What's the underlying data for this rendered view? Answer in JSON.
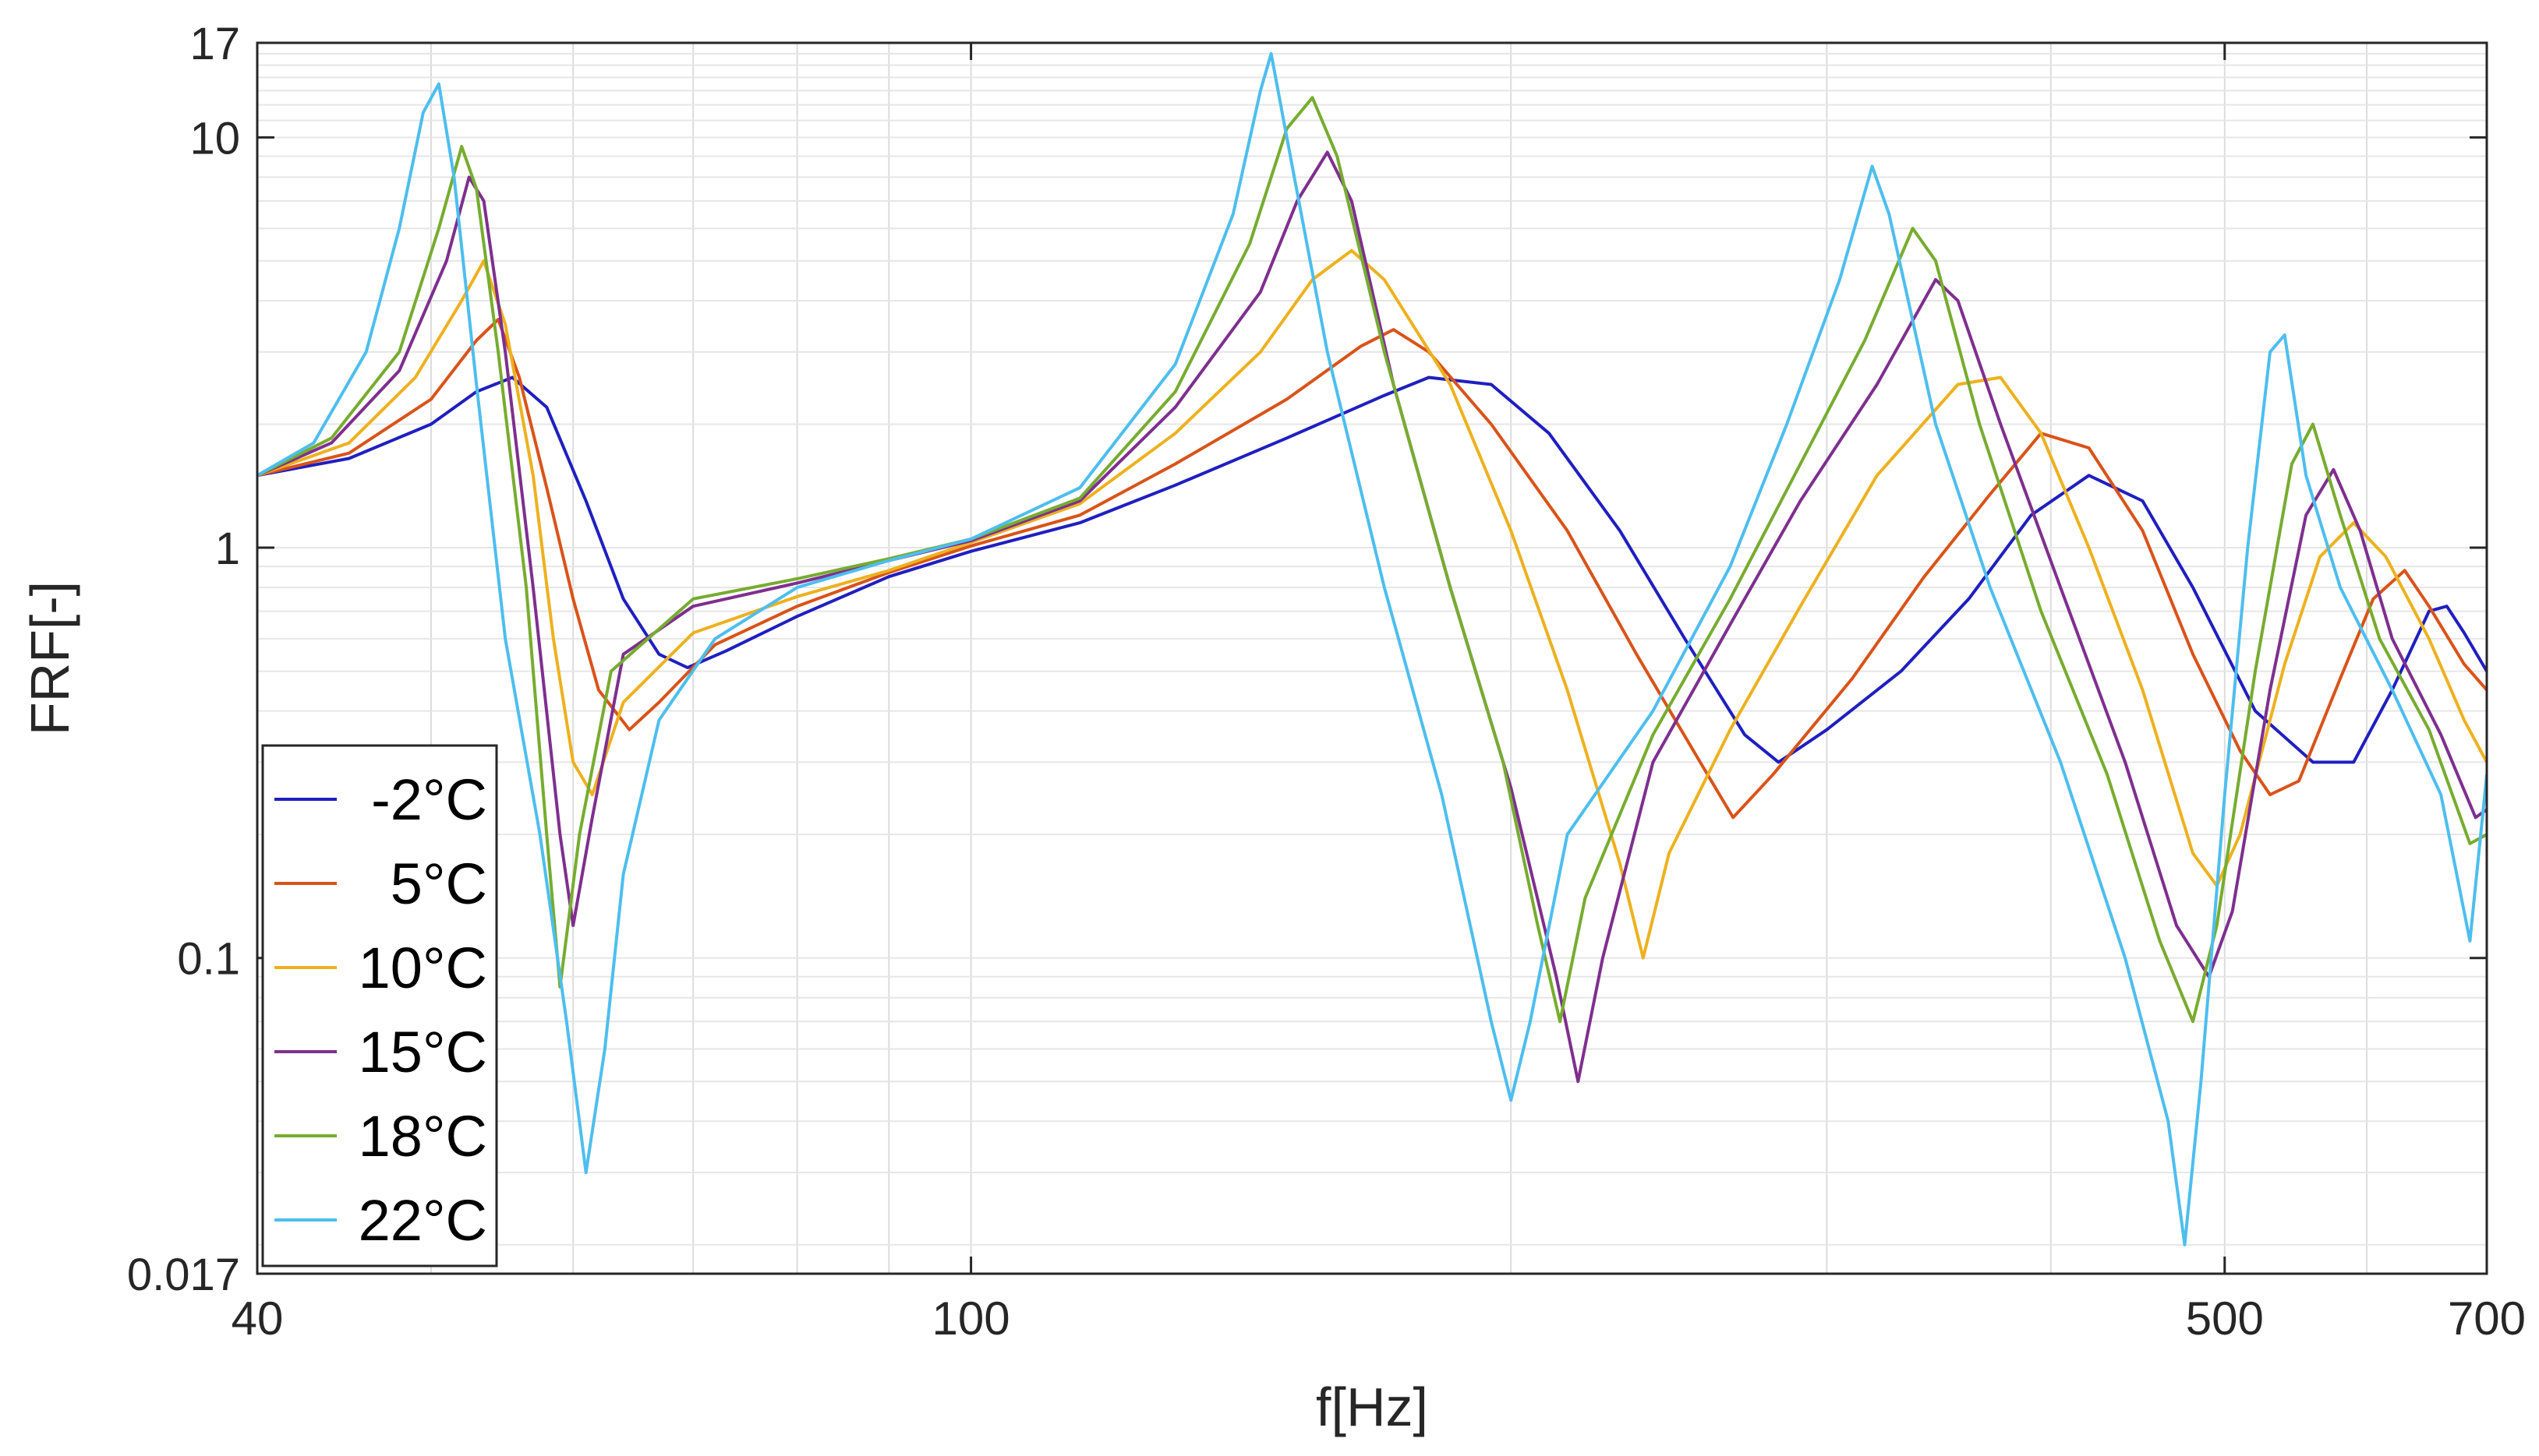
{
  "chart_data": {
    "type": "line",
    "title": "",
    "xlabel": "f[Hz]",
    "ylabel": "FRF[-]",
    "x_scale": "log",
    "y_scale": "log",
    "xlim": [
      40,
      700
    ],
    "ylim": [
      0.017,
      17
    ],
    "x_ticks": [
      {
        "value": 40,
        "label": "40"
      },
      {
        "value": 100,
        "label": "100"
      },
      {
        "value": 500,
        "label": "500"
      },
      {
        "value": 700,
        "label": "700"
      }
    ],
    "y_ticks": [
      {
        "value": 0.017,
        "label": "0.017"
      },
      {
        "value": 0.1,
        "label": "0.1"
      },
      {
        "value": 1,
        "label": "1"
      },
      {
        "value": 10,
        "label": "10"
      },
      {
        "value": 17,
        "label": "17"
      }
    ],
    "grid": true,
    "legend_position": "bottom-left",
    "series": [
      {
        "name": "-2°C",
        "color": "#1f1fbf",
        "points": [
          [
            40,
            1.5
          ],
          [
            45,
            1.65
          ],
          [
            50,
            2.0
          ],
          [
            53,
            2.4
          ],
          [
            55.5,
            2.6
          ],
          [
            58,
            2.2
          ],
          [
            61,
            1.3
          ],
          [
            64,
            0.75
          ],
          [
            67,
            0.55
          ],
          [
            69.5,
            0.51
          ],
          [
            73,
            0.56
          ],
          [
            80,
            0.68
          ],
          [
            90,
            0.85
          ],
          [
            100,
            0.98
          ],
          [
            115,
            1.15
          ],
          [
            130,
            1.42
          ],
          [
            150,
            1.85
          ],
          [
            170,
            2.35
          ],
          [
            180,
            2.6
          ],
          [
            195,
            2.5
          ],
          [
            210,
            1.9
          ],
          [
            230,
            1.1
          ],
          [
            250,
            0.6
          ],
          [
            270,
            0.35
          ],
          [
            282,
            0.3
          ],
          [
            300,
            0.36
          ],
          [
            330,
            0.5
          ],
          [
            360,
            0.75
          ],
          [
            390,
            1.2
          ],
          [
            420,
            1.5
          ],
          [
            450,
            1.3
          ],
          [
            480,
            0.8
          ],
          [
            520,
            0.4
          ],
          [
            560,
            0.3
          ],
          [
            590,
            0.3
          ],
          [
            620,
            0.45
          ],
          [
            650,
            0.7
          ],
          [
            665,
            0.72
          ],
          [
            680,
            0.62
          ],
          [
            700,
            0.5
          ]
        ]
      },
      {
        "name": "5°C",
        "color": "#d95319",
        "points": [
          [
            40,
            1.5
          ],
          [
            45,
            1.7
          ],
          [
            50,
            2.3
          ],
          [
            53,
            3.2
          ],
          [
            54.5,
            3.6
          ],
          [
            56,
            2.6
          ],
          [
            58,
            1.4
          ],
          [
            60,
            0.75
          ],
          [
            62,
            0.45
          ],
          [
            64.5,
            0.36
          ],
          [
            67,
            0.42
          ],
          [
            72,
            0.58
          ],
          [
            80,
            0.72
          ],
          [
            90,
            0.87
          ],
          [
            100,
            1.01
          ],
          [
            115,
            1.2
          ],
          [
            130,
            1.6
          ],
          [
            150,
            2.3
          ],
          [
            165,
            3.1
          ],
          [
            172,
            3.4
          ],
          [
            180,
            3.0
          ],
          [
            195,
            2.0
          ],
          [
            215,
            1.1
          ],
          [
            235,
            0.55
          ],
          [
            255,
            0.3
          ],
          [
            266,
            0.22
          ],
          [
            280,
            0.28
          ],
          [
            310,
            0.48
          ],
          [
            340,
            0.85
          ],
          [
            370,
            1.35
          ],
          [
            395,
            1.9
          ],
          [
            420,
            1.75
          ],
          [
            450,
            1.1
          ],
          [
            480,
            0.55
          ],
          [
            510,
            0.32
          ],
          [
            530,
            0.25
          ],
          [
            550,
            0.27
          ],
          [
            580,
            0.48
          ],
          [
            605,
            0.75
          ],
          [
            630,
            0.88
          ],
          [
            650,
            0.72
          ],
          [
            680,
            0.52
          ],
          [
            700,
            0.45
          ]
        ]
      },
      {
        "name": "10°C",
        "color": "#edb120",
        "points": [
          [
            40,
            1.5
          ],
          [
            45,
            1.8
          ],
          [
            49,
            2.6
          ],
          [
            52,
            4.0
          ],
          [
            53.5,
            5.0
          ],
          [
            55,
            3.5
          ],
          [
            57,
            1.5
          ],
          [
            58.5,
            0.6
          ],
          [
            60,
            0.3
          ],
          [
            61.5,
            0.25
          ],
          [
            64,
            0.42
          ],
          [
            70,
            0.62
          ],
          [
            80,
            0.76
          ],
          [
            90,
            0.88
          ],
          [
            100,
            1.03
          ],
          [
            115,
            1.28
          ],
          [
            130,
            1.9
          ],
          [
            145,
            3.0
          ],
          [
            155,
            4.5
          ],
          [
            163,
            5.3
          ],
          [
            170,
            4.5
          ],
          [
            185,
            2.5
          ],
          [
            200,
            1.1
          ],
          [
            215,
            0.45
          ],
          [
            230,
            0.17
          ],
          [
            237,
            0.1
          ],
          [
            245,
            0.18
          ],
          [
            265,
            0.36
          ],
          [
            290,
            0.72
          ],
          [
            320,
            1.5
          ],
          [
            355,
            2.5
          ],
          [
            375,
            2.6
          ],
          [
            395,
            1.9
          ],
          [
            420,
            1.0
          ],
          [
            450,
            0.45
          ],
          [
            480,
            0.18
          ],
          [
            495,
            0.15
          ],
          [
            510,
            0.2
          ],
          [
            540,
            0.52
          ],
          [
            565,
            0.95
          ],
          [
            590,
            1.15
          ],
          [
            615,
            0.95
          ],
          [
            650,
            0.6
          ],
          [
            680,
            0.38
          ],
          [
            700,
            0.3
          ]
        ]
      },
      {
        "name": "15°C",
        "color": "#7e2f8e",
        "points": [
          [
            40,
            1.5
          ],
          [
            44,
            1.8
          ],
          [
            48,
            2.7
          ],
          [
            51,
            5.0
          ],
          [
            52.5,
            8.0
          ],
          [
            53.5,
            7.0
          ],
          [
            55,
            3.0
          ],
          [
            57,
            0.8
          ],
          [
            59,
            0.2
          ],
          [
            60,
            0.12
          ],
          [
            61.5,
            0.22
          ],
          [
            64,
            0.55
          ],
          [
            70,
            0.72
          ],
          [
            80,
            0.82
          ],
          [
            90,
            0.93
          ],
          [
            100,
            1.04
          ],
          [
            115,
            1.3
          ],
          [
            130,
            2.2
          ],
          [
            145,
            4.2
          ],
          [
            152,
            7.0
          ],
          [
            158,
            9.2
          ],
          [
            163,
            7.0
          ],
          [
            172,
            2.5
          ],
          [
            185,
            0.8
          ],
          [
            200,
            0.26
          ],
          [
            212,
            0.09
          ],
          [
            218,
            0.05
          ],
          [
            225,
            0.1
          ],
          [
            240,
            0.3
          ],
          [
            265,
            0.65
          ],
          [
            290,
            1.3
          ],
          [
            320,
            2.5
          ],
          [
            345,
            4.5
          ],
          [
            355,
            4.0
          ],
          [
            375,
            2.0
          ],
          [
            405,
            0.8
          ],
          [
            440,
            0.3
          ],
          [
            470,
            0.12
          ],
          [
            490,
            0.09
          ],
          [
            505,
            0.13
          ],
          [
            530,
            0.45
          ],
          [
            555,
            1.2
          ],
          [
            575,
            1.55
          ],
          [
            595,
            1.1
          ],
          [
            620,
            0.6
          ],
          [
            660,
            0.35
          ],
          [
            690,
            0.22
          ],
          [
            700,
            0.23
          ]
        ]
      },
      {
        "name": "18°C",
        "color": "#77ac30",
        "points": [
          [
            40,
            1.5
          ],
          [
            44,
            1.85
          ],
          [
            48,
            3.0
          ],
          [
            50.5,
            6.0
          ],
          [
            52,
            9.5
          ],
          [
            53,
            7.5
          ],
          [
            54.5,
            3.0
          ],
          [
            56.5,
            0.8
          ],
          [
            58,
            0.2
          ],
          [
            59,
            0.085
          ],
          [
            60.5,
            0.2
          ],
          [
            63,
            0.5
          ],
          [
            70,
            0.75
          ],
          [
            80,
            0.84
          ],
          [
            90,
            0.94
          ],
          [
            100,
            1.05
          ],
          [
            115,
            1.32
          ],
          [
            130,
            2.4
          ],
          [
            143,
            5.5
          ],
          [
            150,
            10.5
          ],
          [
            155,
            12.5
          ],
          [
            160,
            9.0
          ],
          [
            170,
            3.0
          ],
          [
            185,
            0.8
          ],
          [
            198,
            0.3
          ],
          [
            207,
            0.12
          ],
          [
            213,
            0.07
          ],
          [
            220,
            0.14
          ],
          [
            240,
            0.35
          ],
          [
            265,
            0.75
          ],
          [
            290,
            1.6
          ],
          [
            315,
            3.2
          ],
          [
            335,
            6.0
          ],
          [
            345,
            5.0
          ],
          [
            365,
            2.0
          ],
          [
            395,
            0.7
          ],
          [
            430,
            0.28
          ],
          [
            460,
            0.11
          ],
          [
            480,
            0.07
          ],
          [
            495,
            0.12
          ],
          [
            520,
            0.5
          ],
          [
            545,
            1.6
          ],
          [
            560,
            2.0
          ],
          [
            580,
            1.2
          ],
          [
            610,
            0.6
          ],
          [
            650,
            0.36
          ],
          [
            685,
            0.19
          ],
          [
            700,
            0.2
          ]
        ]
      },
      {
        "name": "22°C",
        "color": "#4dbeee",
        "points": [
          [
            40,
            1.5
          ],
          [
            43,
            1.8
          ],
          [
            46,
            3.0
          ],
          [
            48,
            6.0
          ],
          [
            49.5,
            11.5
          ],
          [
            50.5,
            13.5
          ],
          [
            51.5,
            8.0
          ],
          [
            53,
            2.5
          ],
          [
            55,
            0.6
          ],
          [
            57.5,
            0.2
          ],
          [
            59.5,
            0.07
          ],
          [
            61,
            0.03
          ],
          [
            62.5,
            0.06
          ],
          [
            64,
            0.16
          ],
          [
            67,
            0.38
          ],
          [
            72,
            0.6
          ],
          [
            80,
            0.8
          ],
          [
            90,
            0.93
          ],
          [
            100,
            1.05
          ],
          [
            115,
            1.4
          ],
          [
            130,
            2.8
          ],
          [
            140,
            6.5
          ],
          [
            145,
            13.0
          ],
          [
            147,
            16.0
          ],
          [
            150,
            10.0
          ],
          [
            158,
            3.0
          ],
          [
            170,
            0.8
          ],
          [
            183,
            0.25
          ],
          [
            195,
            0.07
          ],
          [
            200,
            0.045
          ],
          [
            205,
            0.07
          ],
          [
            215,
            0.2
          ],
          [
            240,
            0.4
          ],
          [
            265,
            0.9
          ],
          [
            285,
            2.0
          ],
          [
            305,
            4.5
          ],
          [
            318,
            8.5
          ],
          [
            325,
            6.5
          ],
          [
            345,
            2.0
          ],
          [
            370,
            0.8
          ],
          [
            405,
            0.3
          ],
          [
            440,
            0.1
          ],
          [
            465,
            0.04
          ],
          [
            475,
            0.02
          ],
          [
            485,
            0.05
          ],
          [
            500,
            0.25
          ],
          [
            515,
            1.0
          ],
          [
            530,
            3.0
          ],
          [
            540,
            3.3
          ],
          [
            555,
            1.5
          ],
          [
            580,
            0.8
          ],
          [
            620,
            0.45
          ],
          [
            660,
            0.25
          ],
          [
            685,
            0.11
          ],
          [
            700,
            0.28
          ]
        ]
      }
    ]
  }
}
